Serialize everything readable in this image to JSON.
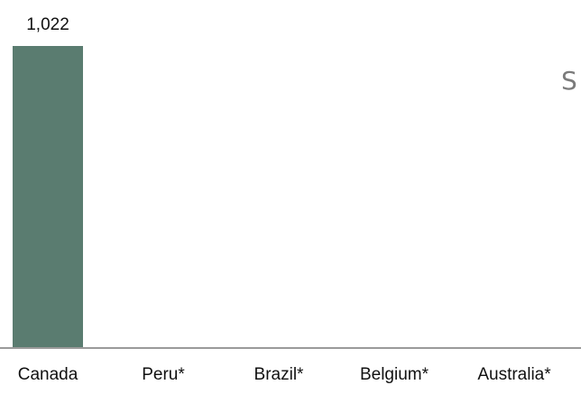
{
  "chart_data": {
    "type": "bar",
    "title": "",
    "xlabel": "",
    "ylabel": "",
    "categories": [
      "Canada",
      "Peru*",
      "Brazil*",
      "Belgium*",
      "Australia*"
    ],
    "values": [
      1022,
      null,
      null,
      null,
      null
    ],
    "value_labels": [
      "1,022",
      "",
      "",
      "",
      ""
    ],
    "ylim": [
      0,
      1022
    ],
    "bar_color": "#5a7c70",
    "axis_color": "#9a9a9a",
    "grid": false,
    "legend": "none"
  },
  "side_text": "S"
}
